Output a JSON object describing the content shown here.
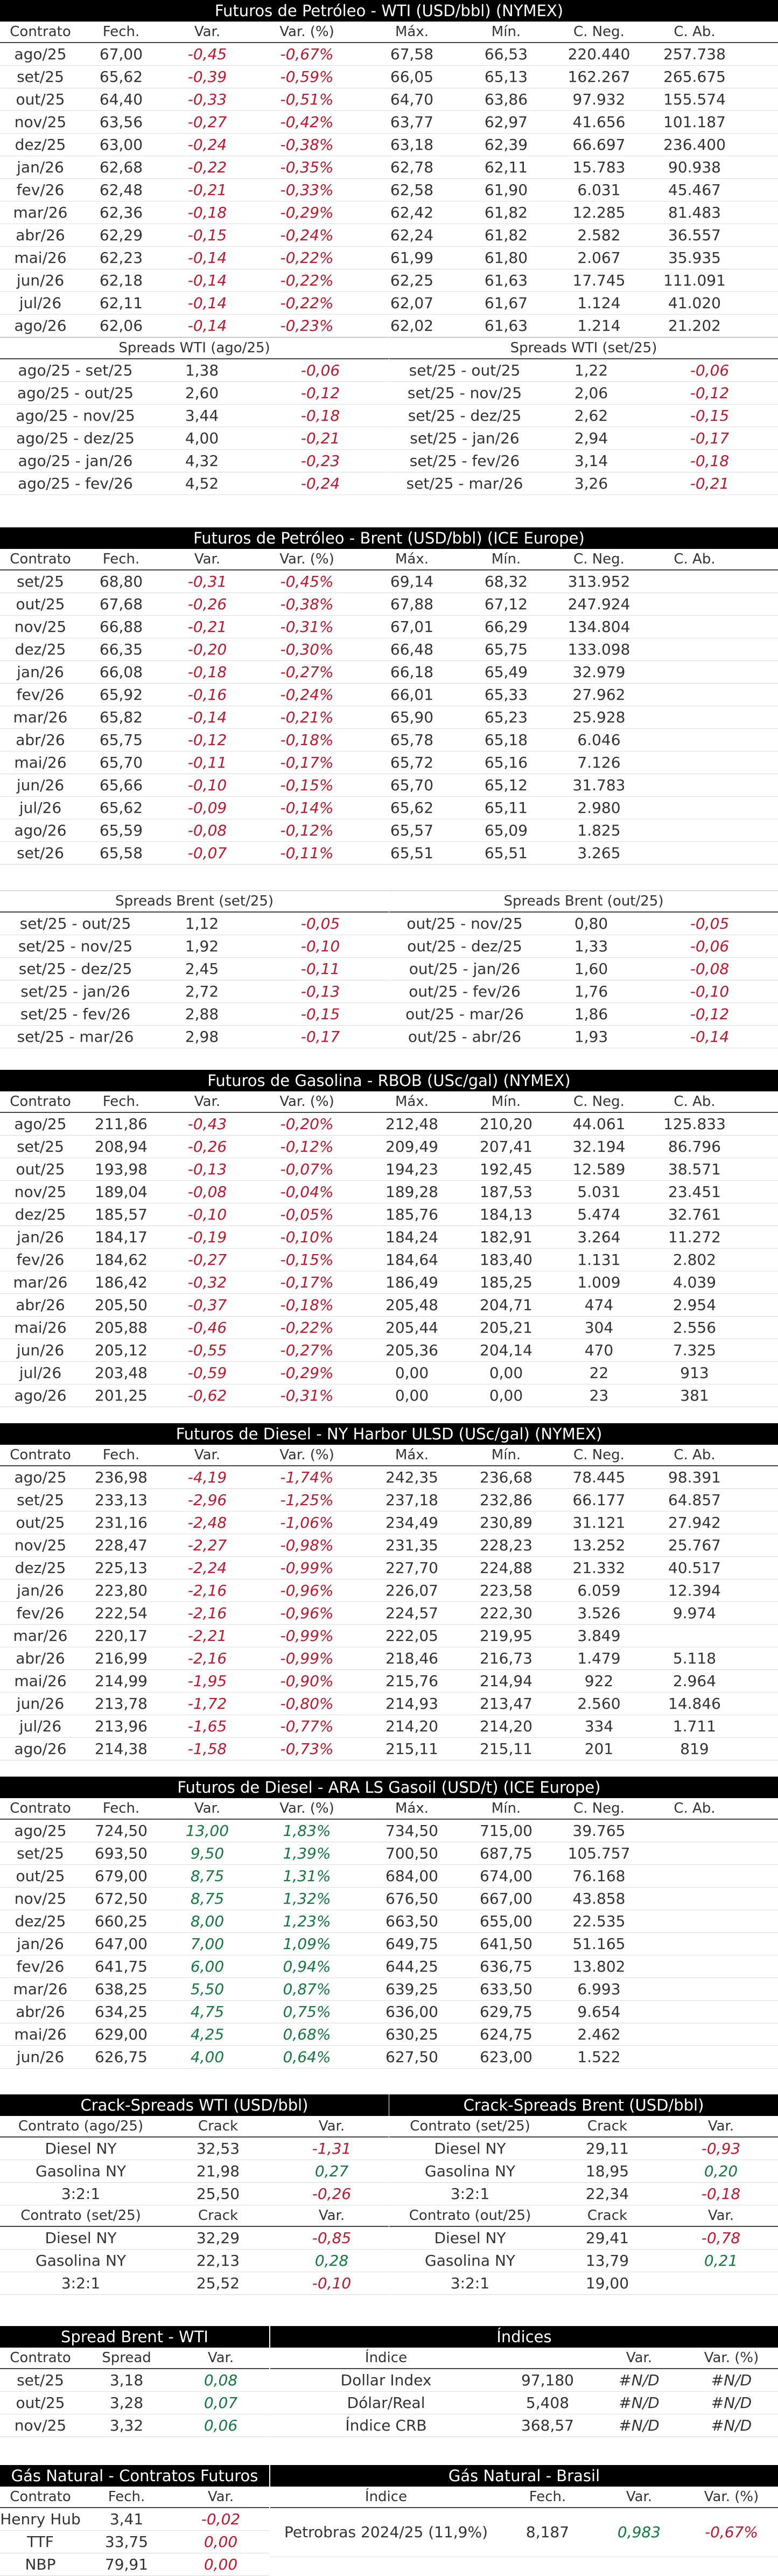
{
  "wti": {
    "title": "Futuros de Petróleo - WTI (USD/bbl) (NYMEX)",
    "headers": [
      "Contrato",
      "Fech.",
      "Var.",
      "Var. (%)",
      "Máx.",
      "Mín.",
      "C. Neg.",
      "C. Ab."
    ],
    "rows": [
      [
        "ago/25",
        "67,00",
        "-0,45",
        "-0,67%",
        "67,58",
        "66,53",
        "220.440",
        "257.738"
      ],
      [
        "set/25",
        "65,62",
        "-0,39",
        "-0,59%",
        "66,05",
        "65,13",
        "162.267",
        "265.675"
      ],
      [
        "out/25",
        "64,40",
        "-0,33",
        "-0,51%",
        "64,70",
        "63,86",
        "97.932",
        "155.574"
      ],
      [
        "nov/25",
        "63,56",
        "-0,27",
        "-0,42%",
        "63,77",
        "62,97",
        "41.656",
        "101.187"
      ],
      [
        "dez/25",
        "63,00",
        "-0,24",
        "-0,38%",
        "63,18",
        "62,39",
        "66.697",
        "236.400"
      ],
      [
        "jan/26",
        "62,68",
        "-0,22",
        "-0,35%",
        "62,78",
        "62,11",
        "15.783",
        "90.938"
      ],
      [
        "fev/26",
        "62,48",
        "-0,21",
        "-0,33%",
        "62,58",
        "61,90",
        "6.031",
        "45.467"
      ],
      [
        "mar/26",
        "62,36",
        "-0,18",
        "-0,29%",
        "62,42",
        "61,82",
        "12.285",
        "81.483"
      ],
      [
        "abr/26",
        "62,29",
        "-0,15",
        "-0,24%",
        "62,24",
        "61,82",
        "2.582",
        "36.557"
      ],
      [
        "mai/26",
        "62,23",
        "-0,14",
        "-0,22%",
        "61,99",
        "61,80",
        "2.067",
        "35.935"
      ],
      [
        "jun/26",
        "62,18",
        "-0,14",
        "-0,22%",
        "62,25",
        "61,63",
        "17.745",
        "111.091"
      ],
      [
        "jul/26",
        "62,11",
        "-0,14",
        "-0,22%",
        "62,07",
        "61,67",
        "1.124",
        "41.020"
      ],
      [
        "ago/26",
        "62,06",
        "-0,14",
        "-0,23%",
        "62,02",
        "61,63",
        "1.214",
        "21.202"
      ]
    ]
  },
  "wti_spreads": {
    "left_title": "Spreads WTI (ago/25)",
    "right_title": "Spreads WTI (set/25)",
    "left": [
      [
        "ago/25 - set/25",
        "1,38",
        "-0,06"
      ],
      [
        "ago/25 - out/25",
        "2,60",
        "-0,12"
      ],
      [
        "ago/25 - nov/25",
        "3,44",
        "-0,18"
      ],
      [
        "ago/25 - dez/25",
        "4,00",
        "-0,21"
      ],
      [
        "ago/25 - jan/26",
        "4,32",
        "-0,23"
      ],
      [
        "ago/25 - fev/26",
        "4,52",
        "-0,24"
      ]
    ],
    "right": [
      [
        "set/25 - out/25",
        "1,22",
        "-0,06"
      ],
      [
        "set/25 - nov/25",
        "2,06",
        "-0,12"
      ],
      [
        "set/25 - dez/25",
        "2,62",
        "-0,15"
      ],
      [
        "set/25 - jan/26",
        "2,94",
        "-0,17"
      ],
      [
        "set/25 - fev/26",
        "3,14",
        "-0,18"
      ],
      [
        "set/25 - mar/26",
        "3,26",
        "-0,21"
      ]
    ]
  },
  "brent": {
    "title": "Futuros de Petróleo - Brent (USD/bbl) (ICE Europe)",
    "headers": [
      "Contrato",
      "Fech.",
      "Var.",
      "Var. (%)",
      "Máx.",
      "Mín.",
      "C. Neg.",
      "C. Ab."
    ],
    "rows": [
      [
        "set/25",
        "68,80",
        "-0,31",
        "-0,45%",
        "69,14",
        "68,32",
        "313.952",
        ""
      ],
      [
        "out/25",
        "67,68",
        "-0,26",
        "-0,38%",
        "67,88",
        "67,12",
        "247.924",
        ""
      ],
      [
        "nov/25",
        "66,88",
        "-0,21",
        "-0,31%",
        "67,01",
        "66,29",
        "134.804",
        ""
      ],
      [
        "dez/25",
        "66,35",
        "-0,20",
        "-0,30%",
        "66,48",
        "65,75",
        "133.098",
        ""
      ],
      [
        "jan/26",
        "66,08",
        "-0,18",
        "-0,27%",
        "66,18",
        "65,49",
        "32.979",
        ""
      ],
      [
        "fev/26",
        "65,92",
        "-0,16",
        "-0,24%",
        "66,01",
        "65,33",
        "27.962",
        ""
      ],
      [
        "mar/26",
        "65,82",
        "-0,14",
        "-0,21%",
        "65,90",
        "65,23",
        "25.928",
        ""
      ],
      [
        "abr/26",
        "65,75",
        "-0,12",
        "-0,18%",
        "65,78",
        "65,18",
        "6.046",
        ""
      ],
      [
        "mai/26",
        "65,70",
        "-0,11",
        "-0,17%",
        "65,72",
        "65,16",
        "7.126",
        ""
      ],
      [
        "jun/26",
        "65,66",
        "-0,10",
        "-0,15%",
        "65,70",
        "65,12",
        "31.783",
        ""
      ],
      [
        "jul/26",
        "65,62",
        "-0,09",
        "-0,14%",
        "65,62",
        "65,11",
        "2.980",
        ""
      ],
      [
        "ago/26",
        "65,59",
        "-0,08",
        "-0,12%",
        "65,57",
        "65,09",
        "1.825",
        ""
      ],
      [
        "set/26",
        "65,58",
        "-0,07",
        "-0,11%",
        "65,51",
        "65,51",
        "3.265",
        ""
      ]
    ]
  },
  "brent_spreads": {
    "left_title": "Spreads Brent (set/25)",
    "right_title": "Spreads Brent (out/25)",
    "left": [
      [
        "set/25 - out/25",
        "1,12",
        "-0,05"
      ],
      [
        "set/25 - nov/25",
        "1,92",
        "-0,10"
      ],
      [
        "set/25 - dez/25",
        "2,45",
        "-0,11"
      ],
      [
        "set/25 - jan/26",
        "2,72",
        "-0,13"
      ],
      [
        "set/25 - fev/26",
        "2,88",
        "-0,15"
      ],
      [
        "set/25 - mar/26",
        "2,98",
        "-0,17"
      ]
    ],
    "right": [
      [
        "out/25 - nov/25",
        "0,80",
        "-0,05"
      ],
      [
        "out/25 - dez/25",
        "1,33",
        "-0,06"
      ],
      [
        "out/25 - jan/26",
        "1,60",
        "-0,08"
      ],
      [
        "out/25 - fev/26",
        "1,76",
        "-0,10"
      ],
      [
        "out/25 - mar/26",
        "1,86",
        "-0,12"
      ],
      [
        "out/25 - abr/26",
        "1,93",
        "-0,14"
      ]
    ]
  },
  "rbob": {
    "title": "Futuros de Gasolina - RBOB (USc/gal) (NYMEX)",
    "headers": [
      "Contrato",
      "Fech.",
      "Var.",
      "Var. (%)",
      "Máx.",
      "Mín.",
      "C. Neg.",
      "C. Ab."
    ],
    "rows": [
      [
        "ago/25",
        "211,86",
        "-0,43",
        "-0,20%",
        "212,48",
        "210,20",
        "44.061",
        "125.833"
      ],
      [
        "set/25",
        "208,94",
        "-0,26",
        "-0,12%",
        "209,49",
        "207,41",
        "32.194",
        "86.796"
      ],
      [
        "out/25",
        "193,98",
        "-0,13",
        "-0,07%",
        "194,23",
        "192,45",
        "12.589",
        "38.571"
      ],
      [
        "nov/25",
        "189,04",
        "-0,08",
        "-0,04%",
        "189,28",
        "187,53",
        "5.031",
        "23.451"
      ],
      [
        "dez/25",
        "185,57",
        "-0,10",
        "-0,05%",
        "185,76",
        "184,13",
        "5.474",
        "32.761"
      ],
      [
        "jan/26",
        "184,17",
        "-0,19",
        "-0,10%",
        "184,24",
        "182,91",
        "3.264",
        "11.272"
      ],
      [
        "fev/26",
        "184,62",
        "-0,27",
        "-0,15%",
        "184,64",
        "183,40",
        "1.131",
        "2.802"
      ],
      [
        "mar/26",
        "186,42",
        "-0,32",
        "-0,17%",
        "186,49",
        "185,25",
        "1.009",
        "4.039"
      ],
      [
        "abr/26",
        "205,50",
        "-0,37",
        "-0,18%",
        "205,48",
        "204,71",
        "474",
        "2.954"
      ],
      [
        "mai/26",
        "205,88",
        "-0,46",
        "-0,22%",
        "205,44",
        "205,21",
        "304",
        "2.556"
      ],
      [
        "jun/26",
        "205,12",
        "-0,55",
        "-0,27%",
        "205,36",
        "204,14",
        "470",
        "7.325"
      ],
      [
        "jul/26",
        "203,48",
        "-0,59",
        "-0,29%",
        "0,00",
        "0,00",
        "22",
        "913"
      ],
      [
        "ago/26",
        "201,25",
        "-0,62",
        "-0,31%",
        "0,00",
        "0,00",
        "23",
        "381"
      ]
    ]
  },
  "ulsd": {
    "title": "Futuros de Diesel - NY Harbor ULSD (USc/gal) (NYMEX)",
    "headers": [
      "Contrato",
      "Fech.",
      "Var.",
      "Var. (%)",
      "Máx.",
      "Mín.",
      "C. Neg.",
      "C. Ab."
    ],
    "rows": [
      [
        "ago/25",
        "236,98",
        "-4,19",
        "-1,74%",
        "242,35",
        "236,68",
        "78.445",
        "98.391"
      ],
      [
        "set/25",
        "233,13",
        "-2,96",
        "-1,25%",
        "237,18",
        "232,86",
        "66.177",
        "64.857"
      ],
      [
        "out/25",
        "231,16",
        "-2,48",
        "-1,06%",
        "234,49",
        "230,89",
        "31.121",
        "27.942"
      ],
      [
        "nov/25",
        "228,47",
        "-2,27",
        "-0,98%",
        "231,35",
        "228,23",
        "13.252",
        "25.767"
      ],
      [
        "dez/25",
        "225,13",
        "-2,24",
        "-0,99%",
        "227,70",
        "224,88",
        "21.332",
        "40.517"
      ],
      [
        "jan/26",
        "223,80",
        "-2,16",
        "-0,96%",
        "226,07",
        "223,58",
        "6.059",
        "12.394"
      ],
      [
        "fev/26",
        "222,54",
        "-2,16",
        "-0,96%",
        "224,57",
        "222,30",
        "3.526",
        "9.974"
      ],
      [
        "mar/26",
        "220,17",
        "-2,21",
        "-0,99%",
        "222,05",
        "219,95",
        "3.849",
        ""
      ],
      [
        "abr/26",
        "216,99",
        "-2,16",
        "-0,99%",
        "218,46",
        "216,73",
        "1.479",
        "5.118"
      ],
      [
        "mai/26",
        "214,99",
        "-1,95",
        "-0,90%",
        "215,76",
        "214,94",
        "922",
        "2.964"
      ],
      [
        "jun/26",
        "213,78",
        "-1,72",
        "-0,80%",
        "214,93",
        "213,47",
        "2.560",
        "14.846"
      ],
      [
        "jul/26",
        "213,96",
        "-1,65",
        "-0,77%",
        "214,20",
        "214,20",
        "334",
        "1.711"
      ],
      [
        "ago/26",
        "214,38",
        "-1,58",
        "-0,73%",
        "215,11",
        "215,11",
        "201",
        "819"
      ]
    ]
  },
  "gasoil": {
    "title": "Futuros de Diesel - ARA LS Gasoil (USD/t) (ICE Europe)",
    "headers": [
      "Contrato",
      "Fech.",
      "Var.",
      "Var. (%)",
      "Máx.",
      "Mín.",
      "C. Neg.",
      "C. Ab."
    ],
    "rows": [
      [
        "ago/25",
        "724,50",
        "13,00",
        "1,83%",
        "734,50",
        "715,00",
        "39.765",
        ""
      ],
      [
        "set/25",
        "693,50",
        "9,50",
        "1,39%",
        "700,50",
        "687,75",
        "105.757",
        ""
      ],
      [
        "out/25",
        "679,00",
        "8,75",
        "1,31%",
        "684,00",
        "674,00",
        "76.168",
        ""
      ],
      [
        "nov/25",
        "672,50",
        "8,75",
        "1,32%",
        "676,50",
        "667,00",
        "43.858",
        ""
      ],
      [
        "dez/25",
        "660,25",
        "8,00",
        "1,23%",
        "663,50",
        "655,00",
        "22.535",
        ""
      ],
      [
        "jan/26",
        "647,00",
        "7,00",
        "1,09%",
        "649,75",
        "641,50",
        "51.165",
        ""
      ],
      [
        "fev/26",
        "641,75",
        "6,00",
        "0,94%",
        "644,25",
        "636,75",
        "13.802",
        ""
      ],
      [
        "mar/26",
        "638,25",
        "5,50",
        "0,87%",
        "639,25",
        "633,50",
        "6.993",
        ""
      ],
      [
        "abr/26",
        "634,25",
        "4,75",
        "0,75%",
        "636,00",
        "629,75",
        "9.654",
        ""
      ],
      [
        "mai/26",
        "629,00",
        "4,25",
        "0,68%",
        "630,25",
        "624,75",
        "2.462",
        ""
      ],
      [
        "jun/26",
        "626,75",
        "4,00",
        "0,64%",
        "627,50",
        "623,00",
        "1.522",
        ""
      ]
    ]
  },
  "crack": {
    "wti_title": "Crack-Spreads WTI (USD/bbl)",
    "brent_title": "Crack-Spreads Brent (USD/bbl)",
    "wti_blocks": [
      {
        "hdr": [
          "Contrato (ago/25)",
          "Crack",
          "Var."
        ],
        "rows": [
          [
            "Diesel NY",
            "32,53",
            "-1,31"
          ],
          [
            "Gasolina NY",
            "21,98",
            "0,27"
          ],
          [
            "3:2:1",
            "25,50",
            "-0,26"
          ]
        ]
      },
      {
        "hdr": [
          "Contrato (set/25)",
          "Crack",
          "Var."
        ],
        "rows": [
          [
            "Diesel NY",
            "32,29",
            "-0,85"
          ],
          [
            "Gasolina NY",
            "22,13",
            "0,28"
          ],
          [
            "3:2:1",
            "25,52",
            "-0,10"
          ]
        ]
      }
    ],
    "brent_blocks": [
      {
        "hdr": [
          "Contrato (set/25)",
          "Crack",
          "Var."
        ],
        "rows": [
          [
            "Diesel NY",
            "29,11",
            "-0,93"
          ],
          [
            "Gasolina NY",
            "18,95",
            "0,20"
          ],
          [
            "3:2:1",
            "22,34",
            "-0,18"
          ]
        ]
      },
      {
        "hdr": [
          "Contrato (out/25)",
          "Crack",
          "Var."
        ],
        "rows": [
          [
            "Diesel NY",
            "29,41",
            "-0,78"
          ],
          [
            "Gasolina NY",
            "13,79",
            "0,21"
          ],
          [
            "3:2:1",
            "19,00",
            ""
          ]
        ]
      }
    ]
  },
  "spread_bw": {
    "title": "Spread Brent - WTI",
    "headers": [
      "Contrato",
      "Spread",
      "Var."
    ],
    "rows": [
      [
        "set/25",
        "3,18",
        "0,08"
      ],
      [
        "out/25",
        "3,28",
        "0,07"
      ],
      [
        "nov/25",
        "3,32",
        "0,06"
      ]
    ]
  },
  "indices": {
    "title": "Índices",
    "headers": [
      "Índice",
      "",
      "Var.",
      "Var. (%)"
    ],
    "rows": [
      [
        "Dollar Index",
        "97,180",
        "#N/D",
        "#N/D"
      ],
      [
        "Dólar/Real",
        "5,408",
        "#N/D",
        "#N/D"
      ],
      [
        "Índice CRB",
        "368,57",
        "#N/D",
        "#N/D"
      ]
    ]
  },
  "gas_fut": {
    "title": "Gás Natural - Contratos Futuros",
    "headers": [
      "Contrato",
      "Fech.",
      "Var."
    ],
    "rows": [
      [
        "Henry Hub",
        "3,41",
        "-0,02"
      ],
      [
        "TTF",
        "33,75",
        "0,00"
      ],
      [
        "NBP",
        "79,91",
        "0,00"
      ]
    ]
  },
  "gas_br": {
    "title": "Gás Natural - Brasil",
    "headers": [
      "Índice",
      "Fech.",
      "Var.",
      "Var. (%)"
    ],
    "rows": [
      [
        "Petrobras 2024/25 (11,9%)",
        "8,187",
        "0,983",
        "-0,67%"
      ]
    ]
  },
  "colors": {
    "negative": "#c0172c",
    "positive": "#127a3e",
    "header_bg": "#000000"
  }
}
